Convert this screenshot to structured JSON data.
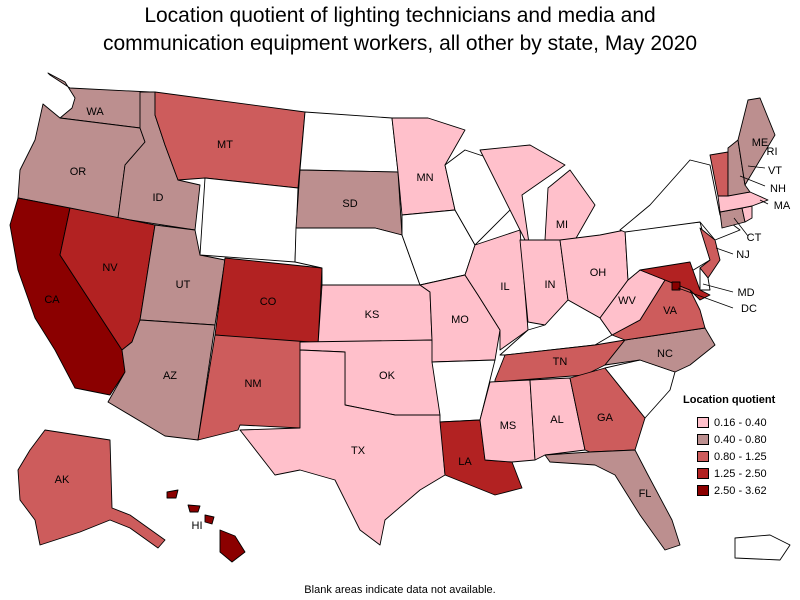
{
  "title_line1": "Location quotient of lighting technicians and media and",
  "title_line2": "communication equipment workers, all other by state, May 2020",
  "footnote": "Blank areas indicate data not available.",
  "legend": {
    "title": "Location quotient",
    "bins": [
      {
        "label": "0.16 - 0.40",
        "color": "#ffc0cb"
      },
      {
        "label": "0.40 - 0.80",
        "color": "#bc8f8f"
      },
      {
        "label": "0.80 - 1.25",
        "color": "#cd5c5c"
      },
      {
        "label": "1.25 - 2.50",
        "color": "#b22222"
      },
      {
        "label": "2.50 - 3.62",
        "color": "#8b0000"
      }
    ],
    "no_data_color": "#ffffff"
  },
  "states": [
    {
      "abbr": "WA",
      "bin": 1
    },
    {
      "abbr": "OR",
      "bin": 1
    },
    {
      "abbr": "CA",
      "bin": 4
    },
    {
      "abbr": "ID",
      "bin": 1
    },
    {
      "abbr": "NV",
      "bin": 3
    },
    {
      "abbr": "UT",
      "bin": 1
    },
    {
      "abbr": "AZ",
      "bin": 1
    },
    {
      "abbr": "MT",
      "bin": 2
    },
    {
      "abbr": "WY",
      "bin": null
    },
    {
      "abbr": "CO",
      "bin": 3
    },
    {
      "abbr": "NM",
      "bin": 2
    },
    {
      "abbr": "ND",
      "bin": null
    },
    {
      "abbr": "SD",
      "bin": 1
    },
    {
      "abbr": "NE",
      "bin": null
    },
    {
      "abbr": "KS",
      "bin": 0
    },
    {
      "abbr": "OK",
      "bin": 0
    },
    {
      "abbr": "TX",
      "bin": 0
    },
    {
      "abbr": "MN",
      "bin": 0
    },
    {
      "abbr": "IA",
      "bin": null
    },
    {
      "abbr": "MO",
      "bin": 0
    },
    {
      "abbr": "AR",
      "bin": null
    },
    {
      "abbr": "LA",
      "bin": 3
    },
    {
      "abbr": "WI",
      "bin": null
    },
    {
      "abbr": "IL",
      "bin": 0
    },
    {
      "abbr": "MI",
      "bin": 0
    },
    {
      "abbr": "IN",
      "bin": 0
    },
    {
      "abbr": "OH",
      "bin": 0
    },
    {
      "abbr": "KY",
      "bin": null
    },
    {
      "abbr": "TN",
      "bin": 2
    },
    {
      "abbr": "MS",
      "bin": 0
    },
    {
      "abbr": "AL",
      "bin": 0
    },
    {
      "abbr": "GA",
      "bin": 2
    },
    {
      "abbr": "FL",
      "bin": 1
    },
    {
      "abbr": "SC",
      "bin": null
    },
    {
      "abbr": "NC",
      "bin": 1
    },
    {
      "abbr": "VA",
      "bin": 2
    },
    {
      "abbr": "WV",
      "bin": 0
    },
    {
      "abbr": "PA",
      "bin": null
    },
    {
      "abbr": "NY",
      "bin": null
    },
    {
      "abbr": "NJ",
      "bin": 2
    },
    {
      "abbr": "DE",
      "bin": null
    },
    {
      "abbr": "MD",
      "bin": 3
    },
    {
      "abbr": "DC",
      "bin": 4
    },
    {
      "abbr": "CT",
      "bin": 1
    },
    {
      "abbr": "RI",
      "bin": 0
    },
    {
      "abbr": "MA",
      "bin": 0
    },
    {
      "abbr": "VT",
      "bin": 2
    },
    {
      "abbr": "NH",
      "bin": 1
    },
    {
      "abbr": "ME",
      "bin": 1
    },
    {
      "abbr": "AK",
      "bin": 2
    },
    {
      "abbr": "HI",
      "bin": 4
    },
    {
      "abbr": "PR",
      "bin": null
    }
  ]
}
